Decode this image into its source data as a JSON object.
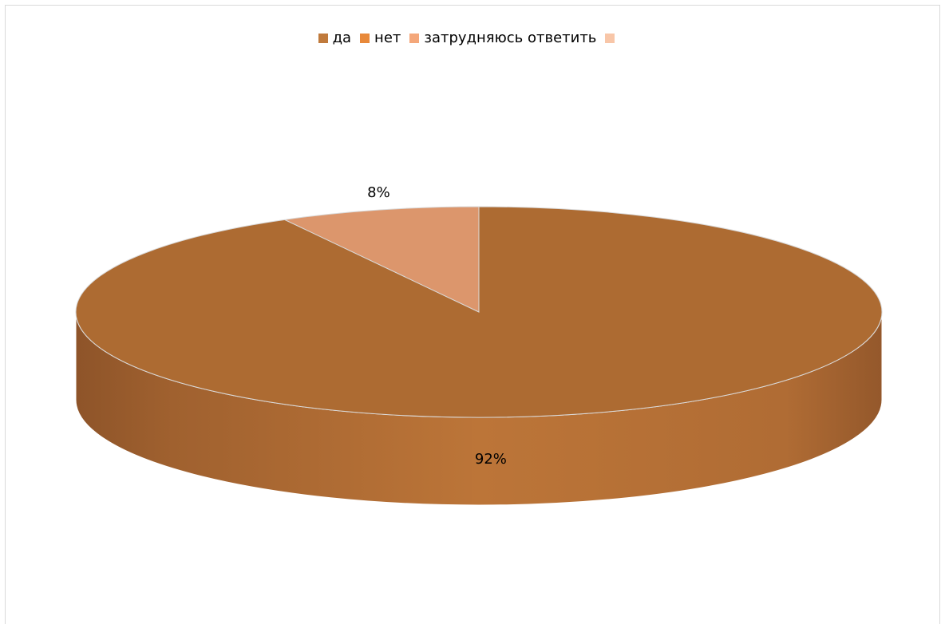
{
  "chart_data": {
    "type": "pie",
    "style": "3d",
    "title": "",
    "categories": [
      "да",
      "нет",
      "затрудняюсь ответить",
      ""
    ],
    "values": [
      92,
      8,
      0,
      0
    ],
    "data_labels": [
      "92%",
      "8%",
      "",
      ""
    ],
    "legend_position": "top",
    "colors": [
      "#c07a3c",
      "#e8893a",
      "#f4a77a",
      "#f8c6a8"
    ],
    "slice_colors": [
      "#ad6b32",
      "#dc966c",
      "#f4a77a",
      "#f8c6a8"
    ]
  }
}
